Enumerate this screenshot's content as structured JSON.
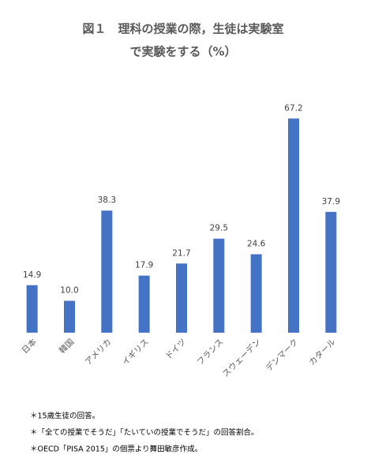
{
  "chart_data": {
    "type": "bar",
    "title": [
      "図１　理科の授業の際，生徒は実験室",
      "で実験をする（%）"
    ],
    "categories": [
      "日本",
      "韓国",
      "アメリカ",
      "イギリス",
      "ドイツ",
      "フランス",
      "スウェーデン",
      "デンマーク",
      "カタール"
    ],
    "values": [
      14.9,
      10.0,
      38.3,
      17.9,
      21.7,
      29.5,
      24.6,
      67.2,
      37.9
    ],
    "value_labels": [
      "14.9",
      "10.0",
      "38.3",
      "17.9",
      "21.7",
      "29.5",
      "24.6",
      "67.2",
      "37.9"
    ],
    "color": "#4472c4",
    "ylim": [
      0,
      70
    ],
    "notes": [
      "＊15歳生徒の回答。",
      "＊「全ての授業でそうだ」「たいていの授業でそうだ」の回答割合。",
      "＊OECD「PISA 2015」の個票より舞田敏彦作成。"
    ]
  }
}
